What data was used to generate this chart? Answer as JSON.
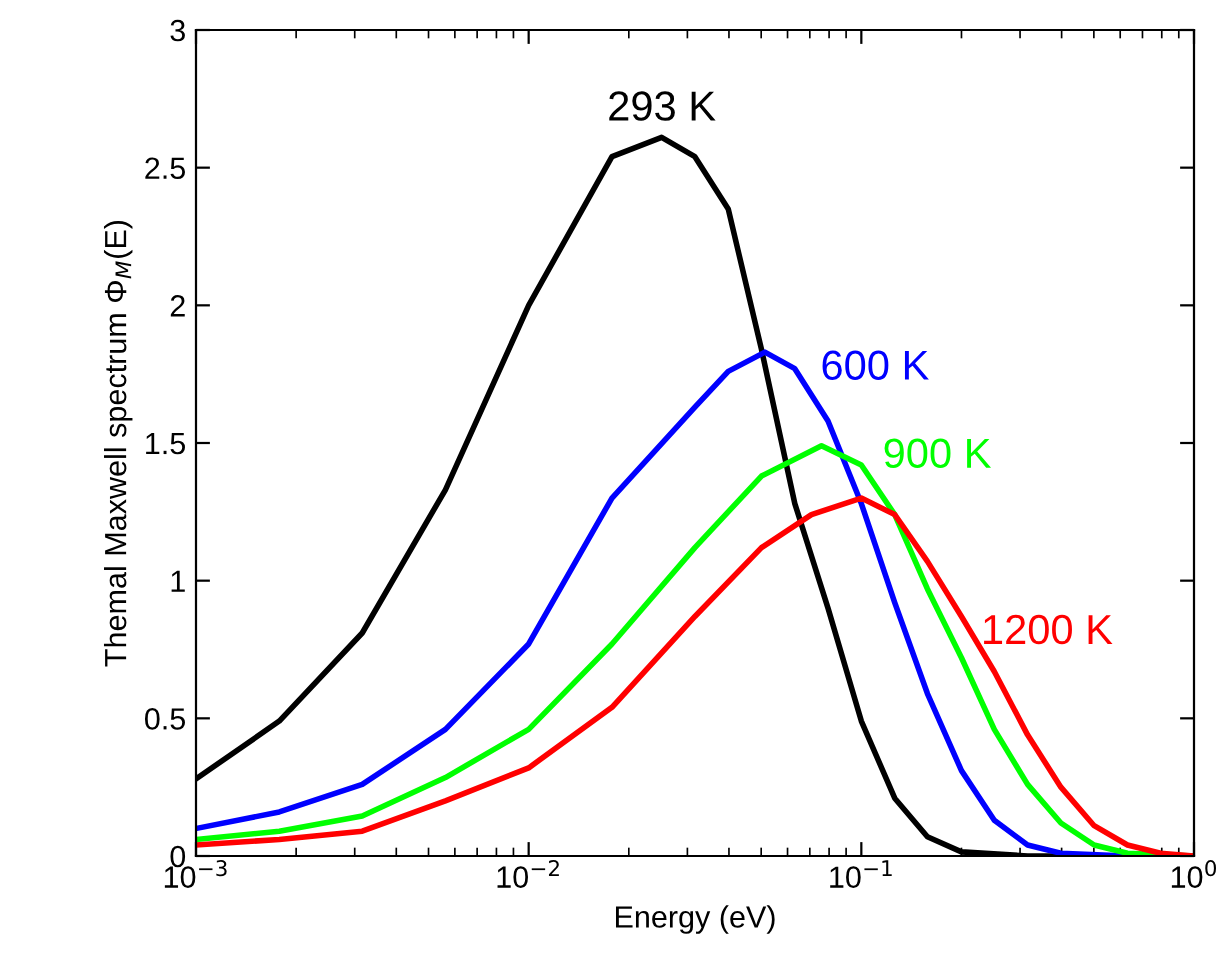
{
  "chart_data": {
    "type": "line",
    "xlabel": "Energy (eV)",
    "ylabel": "Themal Maxwell spectrum Φ$_{M}$(E)",
    "log": "x",
    "grid": false,
    "legend": false,
    "marker": "none",
    "line_style": "solid",
    "xlim": [
      0.001,
      1
    ],
    "xticks": [
      {
        "value": 0.001,
        "label": "10$^{−3}$"
      },
      {
        "value": 0.01,
        "label": "10$^{−2}$"
      },
      {
        "value": 0.1,
        "label": "10$^{−1}$"
      },
      {
        "value": 1,
        "label": "10$^{0}$"
      }
    ],
    "ylim": [
      0,
      3
    ],
    "yticks": [
      0,
      0.5,
      1,
      1.5,
      2,
      2.5,
      3
    ],
    "series": [
      {
        "name": "293 K",
        "color": "#000000",
        "x": [
          0.001,
          0.00178,
          0.00316,
          0.00562,
          0.01,
          0.0178,
          0.0251,
          0.0316,
          0.0398,
          0.0501,
          0.0631,
          0.0794,
          0.1,
          0.126,
          0.158,
          0.2,
          0.316,
          1
        ],
        "values": [
          0.28,
          0.49,
          0.81,
          1.33,
          2.0,
          2.54,
          2.61,
          2.54,
          2.35,
          1.84,
          1.28,
          0.9,
          0.49,
          0.21,
          0.07,
          0.015,
          0,
          0
        ]
      },
      {
        "name": "600 K",
        "color": "#0000ff",
        "x": [
          0.001,
          0.00178,
          0.00316,
          0.00562,
          0.01,
          0.0178,
          0.0316,
          0.0398,
          0.0513,
          0.0631,
          0.0794,
          0.1,
          0.126,
          0.158,
          0.2,
          0.251,
          0.316,
          0.398,
          0.631,
          1
        ],
        "values": [
          0.1,
          0.16,
          0.26,
          0.46,
          0.77,
          1.3,
          1.63,
          1.76,
          1.83,
          1.77,
          1.58,
          1.28,
          0.92,
          0.59,
          0.31,
          0.13,
          0.04,
          0.01,
          0,
          0
        ]
      },
      {
        "name": "900 K",
        "color": "#00ff00",
        "x": [
          0.001,
          0.00178,
          0.00316,
          0.00562,
          0.01,
          0.0178,
          0.0316,
          0.0501,
          0.0759,
          0.1,
          0.126,
          0.158,
          0.2,
          0.251,
          0.316,
          0.398,
          0.501,
          0.631,
          1
        ],
        "values": [
          0.06,
          0.09,
          0.145,
          0.285,
          0.46,
          0.77,
          1.12,
          1.38,
          1.49,
          1.42,
          1.24,
          0.97,
          0.72,
          0.46,
          0.26,
          0.12,
          0.04,
          0.01,
          0
        ]
      },
      {
        "name": "1200 K",
        "color": "#ff0000",
        "x": [
          0.001,
          0.00178,
          0.00316,
          0.00562,
          0.01,
          0.0178,
          0.0316,
          0.0501,
          0.0708,
          0.1,
          0.126,
          0.158,
          0.2,
          0.251,
          0.316,
          0.398,
          0.501,
          0.631,
          0.794,
          1
        ],
        "values": [
          0.04,
          0.06,
          0.09,
          0.2,
          0.32,
          0.54,
          0.87,
          1.12,
          1.24,
          1.3,
          1.24,
          1.07,
          0.87,
          0.67,
          0.44,
          0.25,
          0.11,
          0.04,
          0.01,
          0
        ]
      }
    ]
  }
}
